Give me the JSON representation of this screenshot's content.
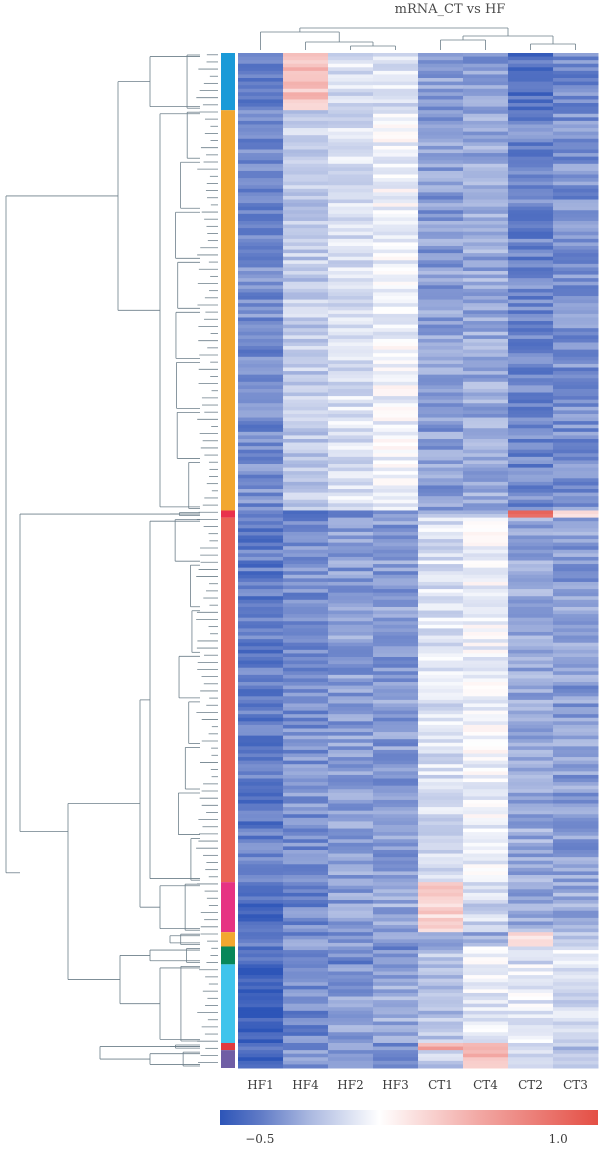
{
  "chart_data": {
    "type": "heatmap",
    "title": "mRNA_CT vs HF",
    "columns": [
      "HF1",
      "HF4",
      "HF2",
      "HF3",
      "CT1",
      "CT4",
      "CT2",
      "CT3"
    ],
    "row_clusters": [
      {
        "color": "#1a9ad8",
        "rows": 16,
        "profile": [
          -0.45,
          0.45,
          -0.05,
          -0.05,
          -0.35,
          -0.35,
          -0.55,
          -0.45
        ]
      },
      {
        "color": "#f2a730",
        "rows": 112,
        "profile": [
          -0.42,
          -0.15,
          -0.05,
          0.05,
          -0.35,
          -0.3,
          -0.45,
          -0.4
        ]
      },
      {
        "color": "#e9314c",
        "rows": 2,
        "profile": [
          -0.5,
          -0.45,
          -0.5,
          -0.4,
          -0.3,
          -0.2,
          1.0,
          0.2
        ]
      },
      {
        "color": "#ea6354",
        "rows": 102,
        "profile": [
          -0.5,
          -0.4,
          -0.35,
          -0.35,
          -0.05,
          0.05,
          -0.3,
          -0.35
        ]
      },
      {
        "color": "#e63383",
        "rows": 14,
        "profile": [
          -0.55,
          -0.45,
          -0.35,
          -0.3,
          0.35,
          -0.1,
          -0.3,
          -0.3
        ]
      },
      {
        "color": "#f2a730",
        "rows": 4,
        "profile": [
          -0.45,
          -0.4,
          -0.35,
          -0.35,
          -0.3,
          -0.3,
          0.3,
          -0.2
        ]
      },
      {
        "color": "#08875a",
        "rows": 5,
        "profile": [
          -0.5,
          -0.45,
          -0.45,
          -0.45,
          -0.2,
          0.0,
          -0.1,
          0.05
        ]
      },
      {
        "color": "#3fc4ec",
        "rows": 22,
        "profile": [
          -0.65,
          -0.45,
          -0.35,
          -0.3,
          -0.2,
          0.0,
          0.0,
          -0.1
        ]
      },
      {
        "color": "#e03a3e",
        "rows": 2,
        "profile": [
          -0.5,
          -0.4,
          -0.2,
          -0.45,
          0.6,
          0.6,
          -0.1,
          -0.2
        ]
      },
      {
        "color": "#6f5ea5",
        "rows": 5,
        "profile": [
          -0.6,
          -0.4,
          -0.35,
          -0.5,
          -0.15,
          0.5,
          -0.1,
          -0.2
        ]
      }
    ],
    "color_scale": {
      "min": -0.7,
      "max": 1.2,
      "stops": [
        {
          "value": -0.7,
          "color": "#2d55b8"
        },
        {
          "value": -0.5,
          "color": "#5f7ac6"
        },
        {
          "value": -0.25,
          "color": "#aab8e0"
        },
        {
          "value": 0.1,
          "color": "#ffffff"
        },
        {
          "value": 0.6,
          "color": "#f2a8a4"
        },
        {
          "value": 1.2,
          "color": "#e44f45"
        }
      ],
      "tick_labels": [
        {
          "value": -0.5,
          "label": "−0.5"
        },
        {
          "value": 1.0,
          "label": "1.0"
        }
      ]
    }
  }
}
